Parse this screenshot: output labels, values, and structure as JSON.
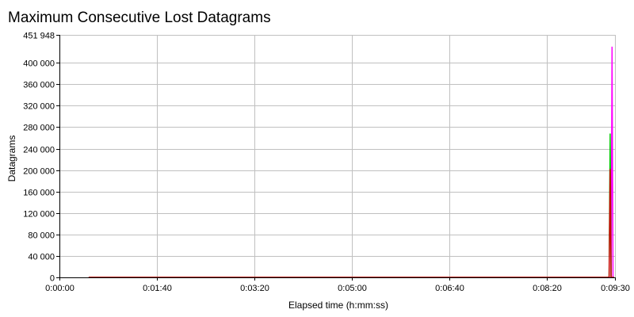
{
  "colors": {
    "grid": "#c0c0c0",
    "axis": "#000000",
    "series_1": "#ff00ff",
    "series_2": "#00cc00",
    "series_3": "#cc0000"
  },
  "chart_data": {
    "type": "line",
    "title": "Maximum Consecutive Lost Datagrams",
    "xlabel": "Elapsed time (h:mm:ss)",
    "ylabel": "Datagrams",
    "xlim_seconds": [
      0,
      570
    ],
    "ylim": [
      0,
      451948
    ],
    "y_ticks": [
      {
        "value": 0,
        "label": "0"
      },
      {
        "value": 40000,
        "label": "40 000"
      },
      {
        "value": 80000,
        "label": "80 000"
      },
      {
        "value": 120000,
        "label": "120 000"
      },
      {
        "value": 160000,
        "label": "160 000"
      },
      {
        "value": 200000,
        "label": "200 000"
      },
      {
        "value": 240000,
        "label": "240 000"
      },
      {
        "value": 280000,
        "label": "280 000"
      },
      {
        "value": 320000,
        "label": "320 000"
      },
      {
        "value": 360000,
        "label": "360 000"
      },
      {
        "value": 400000,
        "label": "400 000"
      },
      {
        "value": 451948,
        "label": "451 948"
      }
    ],
    "x_ticks": [
      {
        "value": 0,
        "label": "0:00:00"
      },
      {
        "value": 100,
        "label": "0:01:40"
      },
      {
        "value": 200,
        "label": "0:03:20"
      },
      {
        "value": 300,
        "label": "0:05:00"
      },
      {
        "value": 400,
        "label": "0:06:40"
      },
      {
        "value": 500,
        "label": "0:08:20"
      },
      {
        "value": 570,
        "label": "0:09:30"
      }
    ],
    "grid": true,
    "series": [
      {
        "color": "#ff00ff",
        "x": [
          30,
          555,
          566,
          567,
          568,
          569
        ],
        "y": [
          0,
          0,
          0,
          430000,
          0,
          0
        ]
      },
      {
        "color": "#00cc00",
        "x": [
          30,
          555,
          564,
          565,
          566,
          569
        ],
        "y": [
          0,
          0,
          0,
          268000,
          0,
          0
        ]
      },
      {
        "color": "#cc0000",
        "x": [
          30,
          555,
          564,
          565,
          566,
          569
        ],
        "y": [
          0,
          0,
          0,
          202000,
          0,
          0
        ]
      }
    ]
  }
}
